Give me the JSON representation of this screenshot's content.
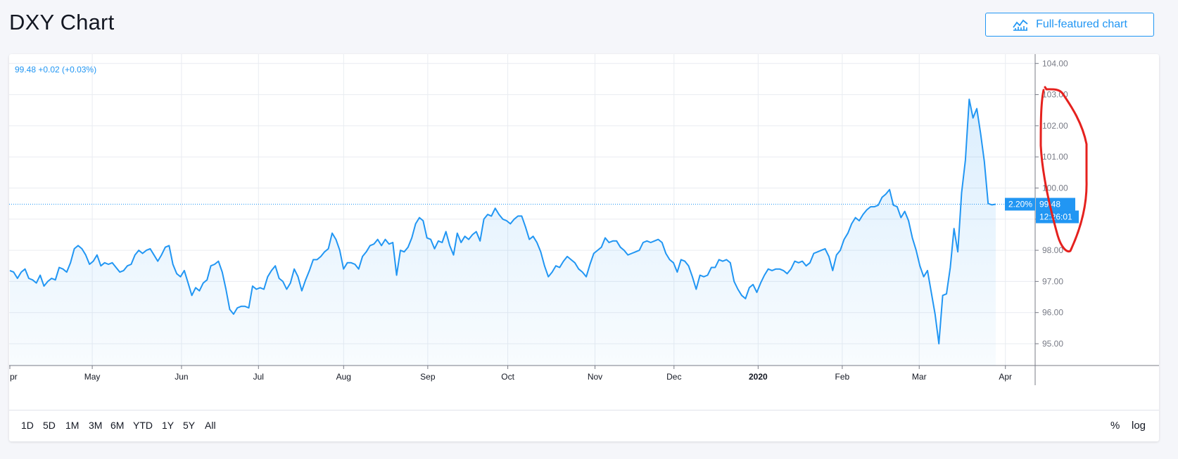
{
  "page": {
    "title": "DXY Chart"
  },
  "toolbar": {
    "full_chart_label": "Full-featured chart",
    "full_chart_icon": "chart-line-icon"
  },
  "readout": {
    "text": "99.48  +0.02 (+0.03%)"
  },
  "price_label": {
    "value": "99.48",
    "percent": "2.20%",
    "countdown": "12:26:01"
  },
  "ranges": [
    "1D",
    "5D",
    "1M",
    "3M",
    "6M",
    "YTD",
    "1Y",
    "5Y",
    "All"
  ],
  "right_options": {
    "percent": "%",
    "log": "log"
  },
  "colors": {
    "line": "#2196f3",
    "annotation": "#e5211e",
    "area": "#2196f3"
  },
  "chart_data": {
    "type": "area",
    "title": "",
    "xlabel": "",
    "ylabel": "",
    "ylim": [
      94.3,
      104.3
    ],
    "y_ticks": [
      "104.00",
      "103.00",
      "102.00",
      "101.00",
      "100.00",
      "99.00",
      "98.00",
      "97.00",
      "96.00",
      "95.00"
    ],
    "x_ticks": [
      "pr",
      "May",
      "Jun",
      "Jul",
      "Aug",
      "Sep",
      "Oct",
      "Nov",
      "Dec",
      "2020",
      "Feb",
      "Mar",
      "Apr"
    ],
    "last_value": 99.48,
    "grid": true,
    "series": [
      {
        "name": "",
        "values": [
          97.35,
          97.3,
          97.1,
          97.3,
          97.4,
          97.1,
          97.05,
          96.95,
          97.2,
          96.85,
          97.0,
          97.1,
          97.05,
          97.45,
          97.4,
          97.3,
          97.6,
          98.05,
          98.15,
          98.05,
          97.85,
          97.55,
          97.65,
          97.85,
          97.5,
          97.6,
          97.55,
          97.6,
          97.45,
          97.3,
          97.35,
          97.5,
          97.55,
          97.85,
          98.0,
          97.9,
          98.0,
          98.05,
          97.85,
          97.65,
          97.85,
          98.1,
          98.15,
          97.55,
          97.25,
          97.15,
          97.35,
          96.95,
          96.55,
          96.8,
          96.7,
          96.95,
          97.05,
          97.5,
          97.55,
          97.65,
          97.3,
          96.75,
          96.1,
          95.95,
          96.15,
          96.2,
          96.2,
          96.15,
          96.85,
          96.75,
          96.8,
          96.75,
          97.15,
          97.35,
          97.5,
          97.1,
          97.0,
          96.75,
          96.95,
          97.4,
          97.15,
          96.7,
          97.05,
          97.35,
          97.7,
          97.7,
          97.8,
          97.95,
          98.05,
          98.55,
          98.35,
          98.0,
          97.4,
          97.6,
          97.6,
          97.55,
          97.4,
          97.8,
          97.95,
          98.15,
          98.2,
          98.35,
          98.15,
          98.35,
          98.2,
          98.25,
          97.2,
          98.0,
          97.95,
          98.1,
          98.4,
          98.85,
          99.05,
          98.95,
          98.4,
          98.35,
          98.05,
          98.3,
          98.25,
          98.6,
          98.15,
          97.85,
          98.55,
          98.25,
          98.45,
          98.35,
          98.5,
          98.6,
          98.3,
          99.0,
          99.15,
          99.1,
          99.35,
          99.15,
          99.0,
          98.95,
          98.85,
          99.0,
          99.1,
          99.1,
          98.75,
          98.35,
          98.45,
          98.25,
          97.95,
          97.5,
          97.15,
          97.3,
          97.5,
          97.45,
          97.65,
          97.8,
          97.7,
          97.6,
          97.4,
          97.3,
          97.15,
          97.55,
          97.9,
          98.0,
          98.1,
          98.4,
          98.25,
          98.3,
          98.3,
          98.1,
          98.0,
          97.85,
          97.9,
          97.95,
          98.0,
          98.25,
          98.3,
          98.25,
          98.3,
          98.35,
          98.25,
          97.9,
          97.7,
          97.6,
          97.3,
          97.7,
          97.65,
          97.5,
          97.15,
          96.75,
          97.2,
          97.15,
          97.2,
          97.45,
          97.45,
          97.7,
          97.65,
          97.7,
          97.6,
          97.0,
          96.75,
          96.55,
          96.45,
          96.8,
          96.9,
          96.65,
          96.95,
          97.2,
          97.4,
          97.35,
          97.4,
          97.4,
          97.35,
          97.25,
          97.4,
          97.65,
          97.6,
          97.65,
          97.5,
          97.6,
          97.9,
          97.95,
          98.0,
          98.05,
          97.8,
          97.35,
          97.85,
          98.0,
          98.35,
          98.55,
          98.85,
          99.05,
          98.95,
          99.15,
          99.3,
          99.4,
          99.4,
          99.45,
          99.7,
          99.8,
          99.95,
          99.45,
          99.4,
          99.05,
          99.25,
          98.95,
          98.4,
          98.0,
          97.5,
          97.15,
          97.35,
          96.65,
          95.95,
          95.0,
          96.55,
          96.6,
          97.45,
          98.7,
          97.95,
          99.85,
          100.9,
          102.85,
          102.25,
          102.55,
          101.75,
          100.85,
          99.5,
          99.46,
          99.48
        ]
      }
    ],
    "annotation": "hand-drawn red circle around March 2020 spike"
  }
}
